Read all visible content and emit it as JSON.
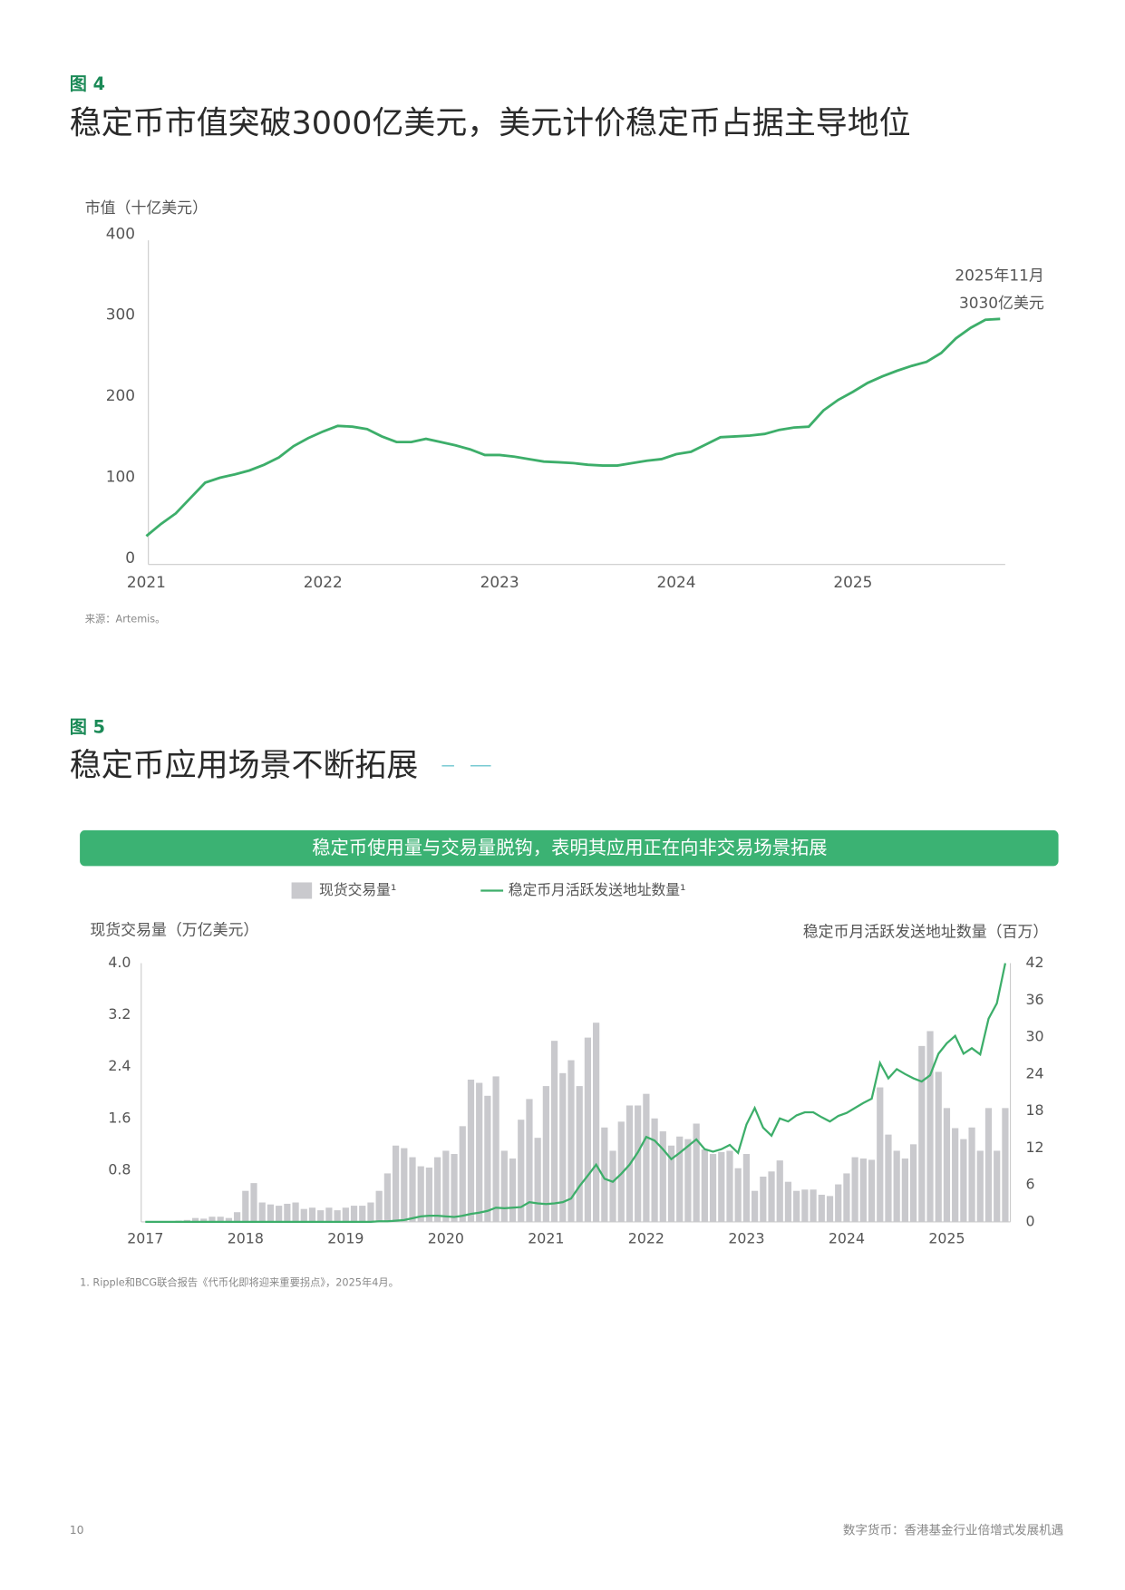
{
  "chart_data": [
    {
      "type": "line",
      "figure_label": "图 4",
      "title": "稳定币市值突破3000亿美元，美元计价稳定币占据主导地位",
      "y_label": "市值（十亿美元）",
      "annotation": [
        "2025年11月",
        "3030亿美元"
      ],
      "source": "来源：Artemis。",
      "color": "#3dae6a",
      "categories": [
        "2021",
        null,
        null,
        null,
        null,
        null,
        null,
        null,
        null,
        null,
        null,
        null,
        "2022",
        null,
        null,
        null,
        null,
        null,
        null,
        null,
        null,
        null,
        null,
        null,
        "2023",
        null,
        null,
        null,
        null,
        null,
        null,
        null,
        null,
        null,
        null,
        null,
        "2024",
        null,
        null,
        null,
        null,
        null,
        null,
        null,
        null,
        null,
        null,
        null,
        "2025",
        null,
        null,
        null,
        null,
        null,
        null,
        null,
        null,
        null,
        null
      ],
      "values": [
        35,
        50,
        63,
        82,
        101,
        107,
        111,
        116,
        123,
        132,
        146,
        156,
        164,
        171,
        170,
        167,
        158,
        151,
        151,
        155,
        151,
        147,
        142,
        135,
        135,
        133,
        130,
        127,
        126,
        125,
        123,
        122,
        122,
        125,
        128,
        130,
        136,
        139,
        148,
        157,
        158,
        159,
        161,
        166,
        169,
        170,
        190,
        203,
        213,
        224,
        232,
        239,
        245,
        250,
        261,
        279,
        292,
        302,
        303
      ],
      "ylim": [
        0,
        400
      ],
      "yticks": [
        0,
        100,
        200,
        300,
        400
      ],
      "grid": false
    },
    {
      "type": "combo",
      "figure_label": "图 5",
      "title": "稳定币应用场景不断拓展",
      "subtitle": "稳定币使用量与交易量脱钩，表明其应用正在向非交易场景拓展",
      "y_label": "现货交易量（万亿美元）",
      "y2_label": "稳定币月活跃发送地址数量（百万）",
      "footnote": "1. Ripple和BCG联合报告《代币化即将迎来重要拐点》，2025年4月。",
      "categories": [
        "2017",
        null,
        null,
        null,
        null,
        null,
        null,
        null,
        null,
        null,
        null,
        null,
        "2018",
        null,
        null,
        null,
        null,
        null,
        null,
        null,
        null,
        null,
        null,
        null,
        "2019",
        null,
        null,
        null,
        null,
        null,
        null,
        null,
        null,
        null,
        null,
        null,
        "2020",
        null,
        null,
        null,
        null,
        null,
        null,
        null,
        null,
        null,
        null,
        null,
        "2021",
        null,
        null,
        null,
        null,
        null,
        null,
        null,
        null,
        null,
        null,
        null,
        "2022",
        null,
        null,
        null,
        null,
        null,
        null,
        null,
        null,
        null,
        null,
        null,
        "2023",
        null,
        null,
        null,
        null,
        null,
        null,
        null,
        null,
        null,
        null,
        null,
        "2024",
        null,
        null,
        null,
        null,
        null,
        null,
        null,
        null,
        null,
        null,
        null,
        "2025",
        null,
        null,
        null,
        null,
        null,
        null,
        null
      ],
      "series": [
        {
          "name": "现货交易量¹",
          "type": "bar",
          "color": "#c9c9cd",
          "values": [
            0,
            0,
            0,
            0,
            0.02,
            0.03,
            0.06,
            0.05,
            0.08,
            0.08,
            0.06,
            0.15,
            0.48,
            0.6,
            0.3,
            0.27,
            0.25,
            0.28,
            0.3,
            0.2,
            0.22,
            0.18,
            0.22,
            0.18,
            0.22,
            0.25,
            0.25,
            0.3,
            0.48,
            0.75,
            1.18,
            1.14,
            1.0,
            0.86,
            0.84,
            1.0,
            1.1,
            1.05,
            1.48,
            2.2,
            2.15,
            1.95,
            2.25,
            1.1,
            0.98,
            1.58,
            1.9,
            1.3,
            2.1,
            2.8,
            2.3,
            2.5,
            2.1,
            2.85,
            3.08,
            1.46,
            1.1,
            1.55,
            1.8,
            1.8,
            1.98,
            1.6,
            1.4,
            1.18,
            1.32,
            1.28,
            1.52,
            1.12,
            1.05,
            1.08,
            1.1,
            0.83,
            1.05,
            0.48,
            0.7,
            0.78,
            0.95,
            0.62,
            0.48,
            0.5,
            0.5,
            0.42,
            0.4,
            0.58,
            0.75,
            1.0,
            0.98,
            0.96,
            2.08,
            1.35,
            1.1,
            0.98,
            1.2,
            2.72,
            2.95,
            2.32,
            1.76,
            1.45,
            1.28,
            1.46,
            1.1,
            1.76,
            1.1,
            1.76
          ]
        },
        {
          "name": "稳定币月活跃发送地址数量¹",
          "type": "line",
          "axis": "y2",
          "color": "#3dae6a",
          "values": [
            0,
            0,
            0,
            0,
            0,
            0,
            0,
            0,
            0,
            0,
            0,
            0,
            0,
            0,
            0,
            0,
            0,
            0,
            0,
            0,
            0,
            0,
            0,
            0,
            0,
            0,
            0,
            0,
            0.1,
            0.1,
            0.2,
            0.3,
            0.6,
            0.9,
            1.0,
            1.0,
            0.9,
            0.8,
            1.0,
            1.3,
            1.5,
            1.8,
            2.3,
            2.2,
            2.3,
            2.4,
            3.2,
            3.0,
            2.9,
            3.0,
            3.2,
            3.8,
            5.8,
            7.5,
            9.3,
            7.0,
            6.5,
            7.8,
            9.3,
            11.3,
            13.8,
            13.2,
            11.8,
            10.2,
            11.2,
            12.3,
            13.4,
            11.8,
            11.4,
            11.8,
            12.5,
            11.2,
            15.8,
            18.5,
            15.3,
            14.0,
            16.8,
            16.3,
            17.3,
            17.8,
            17.8,
            17.0,
            16.3,
            17.2,
            17.7,
            18.5,
            19.3,
            20.0,
            25.8,
            23.3,
            24.8,
            24.0,
            23.3,
            22.8,
            23.8,
            27.3,
            29.0,
            30.2,
            27.3,
            28.2,
            27.2,
            33.0,
            35.5,
            42.0
          ]
        }
      ],
      "ylim": [
        0,
        4
      ],
      "yticks": [
        0.8,
        1.6,
        2.4,
        3.2,
        {
          "value": 4,
          "label": "4.0"
        }
      ],
      "y2lim": [
        0,
        42
      ],
      "y2ticks": [
        0,
        6,
        12,
        18,
        24,
        30,
        36,
        42
      ],
      "grid": false
    }
  ],
  "footer": {
    "page": "10",
    "text": "数字货币：香港基金行业倍增式发展机遇"
  }
}
